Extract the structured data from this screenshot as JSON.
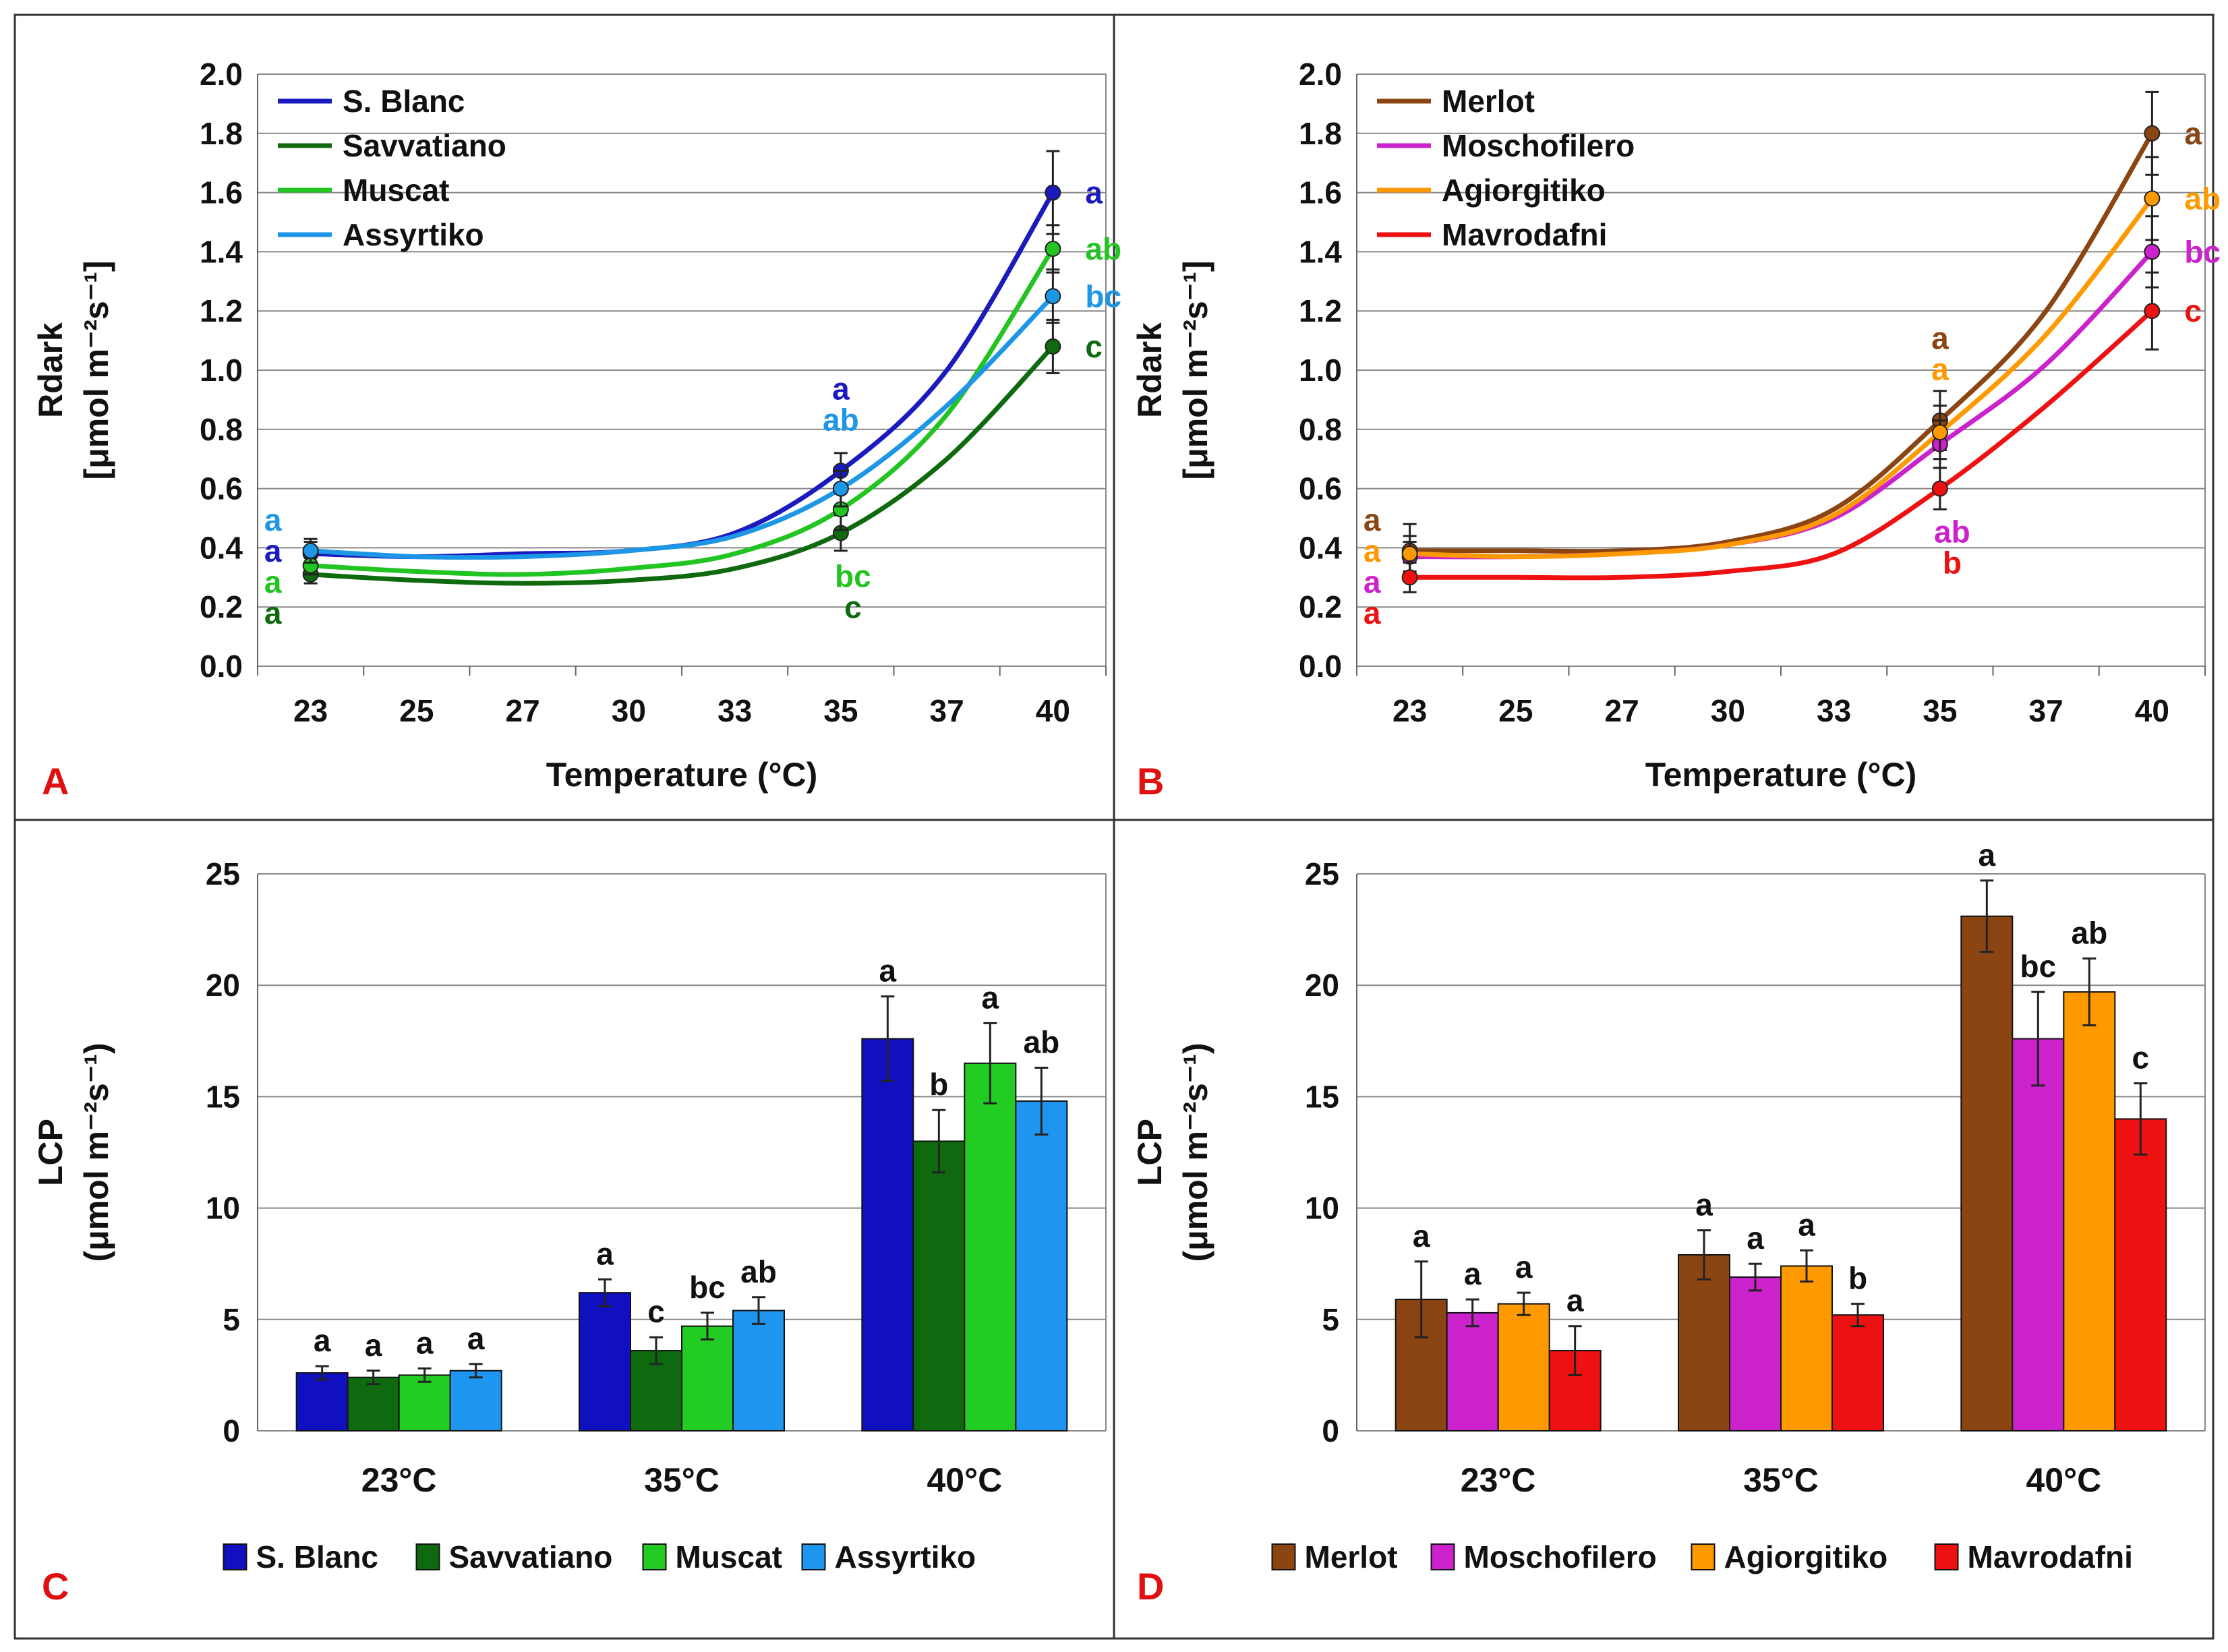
{
  "panel_labels": {
    "A": "A",
    "B": "B",
    "C": "C",
    "D": "D"
  },
  "chart_data": [
    {
      "panel": "A",
      "type": "line",
      "xlabel": "Temperature (°C)",
      "ylabel_line1": "Rdark",
      "ylabel_line2": "[μmol m⁻²s⁻¹]",
      "ylim": [
        0,
        2.0
      ],
      "yticks": [
        "0.0",
        "0.2",
        "0.4",
        "0.6",
        "0.8",
        "1.0",
        "1.2",
        "1.4",
        "1.6",
        "1.8",
        "2.0"
      ],
      "categories": [
        "23",
        "25",
        "27",
        "30",
        "33",
        "35",
        "37",
        "40"
      ],
      "legend_position": "top-left",
      "series": [
        {
          "name": "S. Blanc",
          "color": "#1a1abf",
          "values": [
            0.38,
            0.37,
            0.38,
            0.39,
            0.45,
            0.66,
            1.0,
            1.6
          ],
          "points": [
            0.38,
            null,
            null,
            null,
            null,
            0.66,
            null,
            1.6
          ],
          "err": [
            0.04,
            null,
            null,
            null,
            null,
            0.06,
            null,
            0.14
          ],
          "letters": [
            "a",
            null,
            null,
            null,
            null,
            "a",
            null,
            "a"
          ]
        },
        {
          "name": "Savvatiano",
          "color": "#0f6a0f",
          "values": [
            0.31,
            0.29,
            0.28,
            0.29,
            0.33,
            0.45,
            0.7,
            1.08
          ],
          "points": [
            0.31,
            null,
            null,
            null,
            null,
            0.45,
            null,
            1.08
          ],
          "err": [
            0.03,
            null,
            null,
            null,
            null,
            0.06,
            null,
            0.09
          ],
          "letters": [
            "a",
            null,
            null,
            null,
            null,
            "c",
            null,
            "c"
          ]
        },
        {
          "name": "Muscat",
          "color": "#22c422",
          "values": [
            0.34,
            0.32,
            0.31,
            0.33,
            0.38,
            0.53,
            0.85,
            1.41
          ],
          "points": [
            0.34,
            null,
            null,
            null,
            null,
            0.53,
            null,
            1.41
          ],
          "err": [
            0.03,
            null,
            null,
            null,
            null,
            0.07,
            null,
            0.08
          ],
          "letters": [
            "a",
            null,
            null,
            null,
            null,
            "bc",
            null,
            "ab"
          ]
        },
        {
          "name": "Assyrtiko",
          "color": "#1e96e6",
          "values": [
            0.39,
            0.37,
            0.37,
            0.39,
            0.44,
            0.6,
            0.88,
            1.25
          ],
          "points": [
            0.39,
            null,
            null,
            null,
            null,
            0.6,
            null,
            1.25
          ],
          "err": [
            0.04,
            null,
            null,
            null,
            null,
            0.06,
            null,
            0.09
          ],
          "letters": [
            "a",
            null,
            null,
            null,
            null,
            "ab",
            null,
            "bc"
          ]
        }
      ]
    },
    {
      "panel": "B",
      "type": "line",
      "xlabel": "Temperature (°C)",
      "ylabel_line1": "Rdark",
      "ylabel_line2": "[μmol m⁻²s⁻¹]",
      "ylim": [
        0,
        2.0
      ],
      "yticks": [
        "0.0",
        "0.2",
        "0.4",
        "0.6",
        "0.8",
        "1.0",
        "1.2",
        "1.4",
        "1.6",
        "1.8",
        "2.0"
      ],
      "categories": [
        "23",
        "25",
        "27",
        "30",
        "33",
        "35",
        "37",
        "40"
      ],
      "legend_position": "top-left",
      "series": [
        {
          "name": "Merlot",
          "color": "#8b4513",
          "values": [
            0.39,
            0.39,
            0.39,
            0.42,
            0.53,
            0.83,
            1.2,
            1.8
          ],
          "points": [
            0.39,
            null,
            null,
            null,
            null,
            0.83,
            null,
            1.8
          ],
          "err": [
            0.09,
            null,
            null,
            null,
            null,
            0.1,
            null,
            0.14
          ],
          "letters": [
            "a",
            null,
            null,
            null,
            null,
            "a",
            null,
            "a"
          ]
        },
        {
          "name": "Moschofilero",
          "color": "#cc22cc",
          "values": [
            0.37,
            0.37,
            0.38,
            0.41,
            0.5,
            0.75,
            1.02,
            1.4
          ],
          "points": [
            0.37,
            null,
            null,
            null,
            null,
            0.75,
            null,
            1.4
          ],
          "err": [
            0.05,
            null,
            null,
            null,
            null,
            0.08,
            null,
            0.12
          ],
          "letters": [
            "a",
            null,
            null,
            null,
            null,
            "ab",
            null,
            "bc"
          ]
        },
        {
          "name": "Agiorgitiko",
          "color": "#ff9900",
          "values": [
            0.38,
            0.37,
            0.38,
            0.41,
            0.51,
            0.79,
            1.12,
            1.58
          ],
          "points": [
            0.38,
            null,
            null,
            null,
            null,
            0.79,
            null,
            1.58
          ],
          "err": [
            0.06,
            null,
            null,
            null,
            null,
            0.09,
            null,
            0.14
          ],
          "letters": [
            "a",
            null,
            null,
            null,
            null,
            "a",
            null,
            "ab"
          ]
        },
        {
          "name": "Mavrodafni",
          "color": "#ee1111",
          "values": [
            0.3,
            0.3,
            0.3,
            0.32,
            0.38,
            0.6,
            0.88,
            1.2
          ],
          "points": [
            0.3,
            null,
            null,
            null,
            null,
            0.6,
            null,
            1.2
          ],
          "err": [
            0.05,
            null,
            null,
            null,
            null,
            0.07,
            null,
            0.13
          ],
          "letters": [
            "a",
            null,
            null,
            null,
            null,
            "b",
            null,
            "c"
          ]
        }
      ]
    },
    {
      "panel": "C",
      "type": "bar",
      "ylabel_line1": "LCP",
      "ylabel_line2": "(μmol m⁻²s⁻¹)",
      "ylim": [
        0,
        25
      ],
      "yticks": [
        "0",
        "5",
        "10",
        "15",
        "20",
        "25"
      ],
      "categories": [
        "23°C",
        "35°C",
        "40°C"
      ],
      "legend_position": "bottom",
      "series": [
        {
          "name": "S. Blanc",
          "color": "#1010c0",
          "values": [
            2.6,
            6.2,
            17.6
          ],
          "err": [
            0.3,
            0.6,
            1.9
          ],
          "letters": [
            "a",
            "a",
            "a"
          ]
        },
        {
          "name": "Savvatiano",
          "color": "#0f6a0f",
          "values": [
            2.4,
            3.6,
            13.0
          ],
          "err": [
            0.3,
            0.6,
            1.4
          ],
          "letters": [
            "a",
            "c",
            "b"
          ]
        },
        {
          "name": "Muscat",
          "color": "#22cc22",
          "values": [
            2.5,
            4.7,
            16.5
          ],
          "err": [
            0.3,
            0.6,
            1.8
          ],
          "letters": [
            "a",
            "bc",
            "a"
          ]
        },
        {
          "name": "Assyrtiko",
          "color": "#1e96f0",
          "values": [
            2.7,
            5.4,
            14.8
          ],
          "err": [
            0.3,
            0.6,
            1.5
          ],
          "letters": [
            "a",
            "ab",
            "ab"
          ]
        }
      ]
    },
    {
      "panel": "D",
      "type": "bar",
      "ylabel_line1": "LCP",
      "ylabel_line2": "(μmol m⁻²s⁻¹)",
      "ylim": [
        0,
        25
      ],
      "yticks": [
        "0",
        "5",
        "10",
        "15",
        "20",
        "25"
      ],
      "categories": [
        "23°C",
        "35°C",
        "40°C"
      ],
      "legend_position": "bottom",
      "series": [
        {
          "name": "Merlot",
          "color": "#8b4513",
          "values": [
            5.9,
            7.9,
            23.1
          ],
          "err": [
            1.7,
            1.1,
            1.6
          ],
          "letters": [
            "a",
            "a",
            "a"
          ]
        },
        {
          "name": "Moschofilero",
          "color": "#cc22cc",
          "values": [
            5.3,
            6.9,
            17.6
          ],
          "err": [
            0.6,
            0.6,
            2.1
          ],
          "letters": [
            "a",
            "a",
            "bc"
          ]
        },
        {
          "name": "Agiorgitiko",
          "color": "#ff9900",
          "values": [
            5.7,
            7.4,
            19.7
          ],
          "err": [
            0.5,
            0.7,
            1.5
          ],
          "letters": [
            "a",
            "a",
            "ab"
          ]
        },
        {
          "name": "Mavrodafni",
          "color": "#ee1111",
          "values": [
            3.6,
            5.2,
            14.0
          ],
          "err": [
            1.1,
            0.5,
            1.6
          ],
          "letters": [
            "a",
            "b",
            "c"
          ]
        }
      ]
    }
  ]
}
